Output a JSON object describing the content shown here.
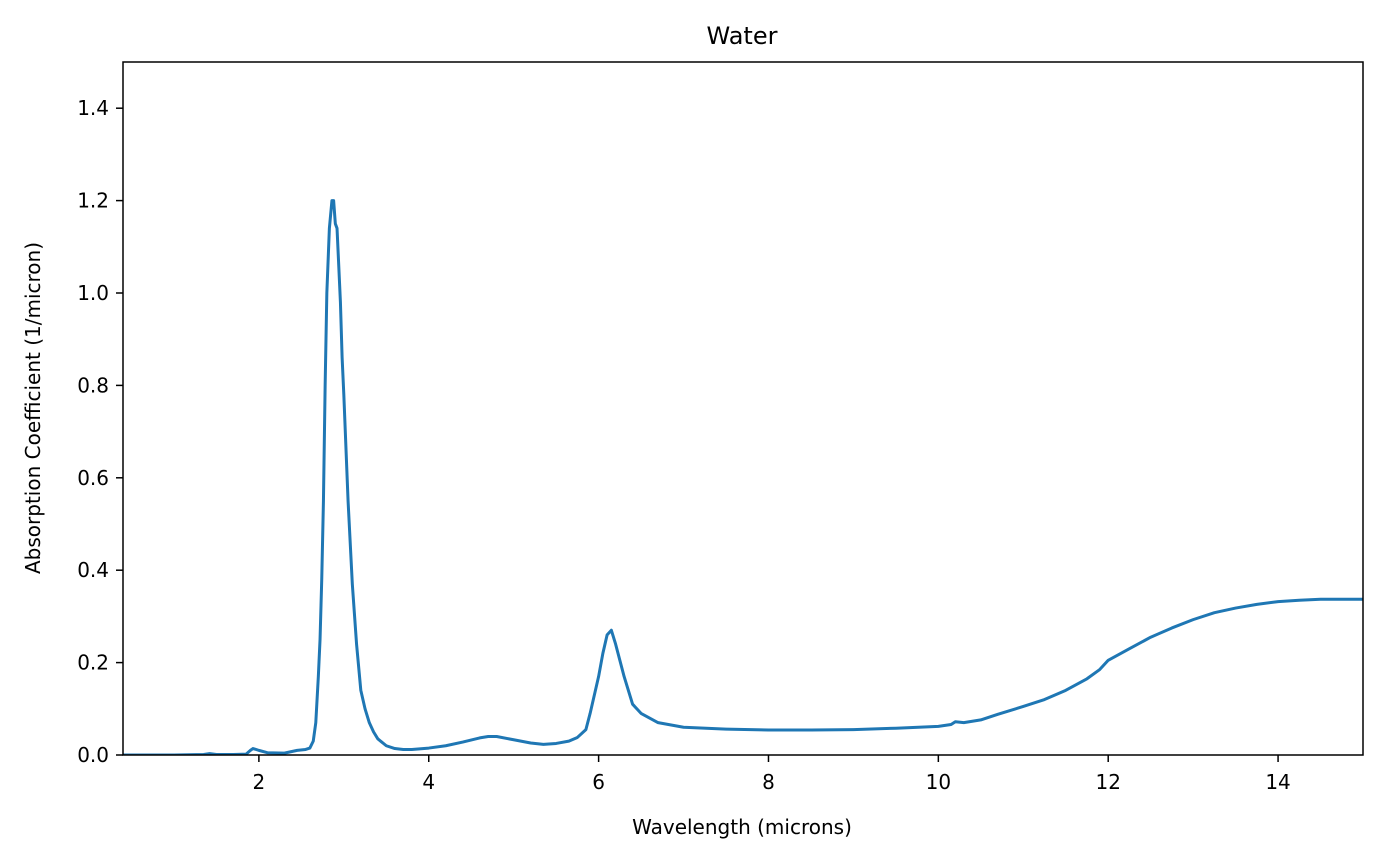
{
  "chart_data": {
    "type": "line",
    "title": "Water",
    "xlabel": "Wavelength (microns)",
    "ylabel": "Absorption Coefficient (1/micron)",
    "xlim": [
      0.4,
      15
    ],
    "ylim": [
      0,
      1.5
    ],
    "xticks": [
      2,
      4,
      6,
      8,
      10,
      12,
      14
    ],
    "xtick_labels": [
      "2",
      "4",
      "6",
      "8",
      "10",
      "12",
      "14"
    ],
    "yticks": [
      0.0,
      0.2,
      0.4,
      0.6,
      0.8,
      1.0,
      1.2,
      1.4
    ],
    "ytick_labels": [
      "0.0",
      "0.2",
      "0.4",
      "0.6",
      "0.8",
      "1.0",
      "1.2",
      "1.4"
    ],
    "grid": false,
    "line_color": "#1f77b4",
    "series": [
      {
        "x": [
          0.4,
          1.0,
          1.35,
          1.42,
          1.5,
          1.7,
          1.85,
          1.9,
          1.93,
          2.0,
          2.1,
          2.3,
          2.45,
          2.55,
          2.6,
          2.64,
          2.67,
          2.7,
          2.72,
          2.74,
          2.76,
          2.78,
          2.8,
          2.83,
          2.86,
          2.88,
          2.9,
          2.92,
          2.94,
          2.96,
          2.98,
          3.0,
          3.05,
          3.1,
          3.15,
          3.2,
          3.25,
          3.3,
          3.35,
          3.4,
          3.5,
          3.6,
          3.7,
          3.8,
          4.0,
          4.2,
          4.4,
          4.6,
          4.7,
          4.8,
          5.0,
          5.2,
          5.35,
          5.5,
          5.65,
          5.75,
          5.85,
          5.9,
          5.95,
          6.0,
          6.05,
          6.1,
          6.15,
          6.2,
          6.3,
          6.4,
          6.5,
          6.7,
          7.0,
          7.5,
          8.0,
          8.5,
          9.0,
          9.5,
          10.0,
          10.15,
          10.2,
          10.3,
          10.5,
          10.7,
          11.0,
          11.25,
          11.5,
          11.75,
          11.9,
          12.0,
          12.25,
          12.5,
          12.75,
          13.0,
          13.25,
          13.5,
          13.75,
          14.0,
          14.25,
          14.5,
          14.75,
          15.0
        ],
        "y": [
          0.0,
          0.0,
          0.001,
          0.003,
          0.001,
          0.001,
          0.002,
          0.01,
          0.014,
          0.01,
          0.005,
          0.004,
          0.01,
          0.012,
          0.015,
          0.03,
          0.07,
          0.17,
          0.25,
          0.38,
          0.55,
          0.8,
          1.0,
          1.14,
          1.2,
          1.2,
          1.15,
          1.14,
          1.06,
          0.98,
          0.86,
          0.78,
          0.55,
          0.37,
          0.24,
          0.14,
          0.1,
          0.07,
          0.05,
          0.035,
          0.02,
          0.014,
          0.012,
          0.012,
          0.015,
          0.02,
          0.028,
          0.037,
          0.04,
          0.04,
          0.033,
          0.026,
          0.023,
          0.025,
          0.03,
          0.038,
          0.055,
          0.09,
          0.13,
          0.17,
          0.22,
          0.26,
          0.27,
          0.24,
          0.17,
          0.11,
          0.09,
          0.07,
          0.06,
          0.056,
          0.054,
          0.054,
          0.055,
          0.058,
          0.062,
          0.066,
          0.072,
          0.07,
          0.076,
          0.088,
          0.105,
          0.12,
          0.14,
          0.165,
          0.185,
          0.205,
          0.23,
          0.255,
          0.275,
          0.293,
          0.308,
          0.318,
          0.326,
          0.332,
          0.335,
          0.337,
          0.337,
          0.337
        ]
      }
    ]
  }
}
